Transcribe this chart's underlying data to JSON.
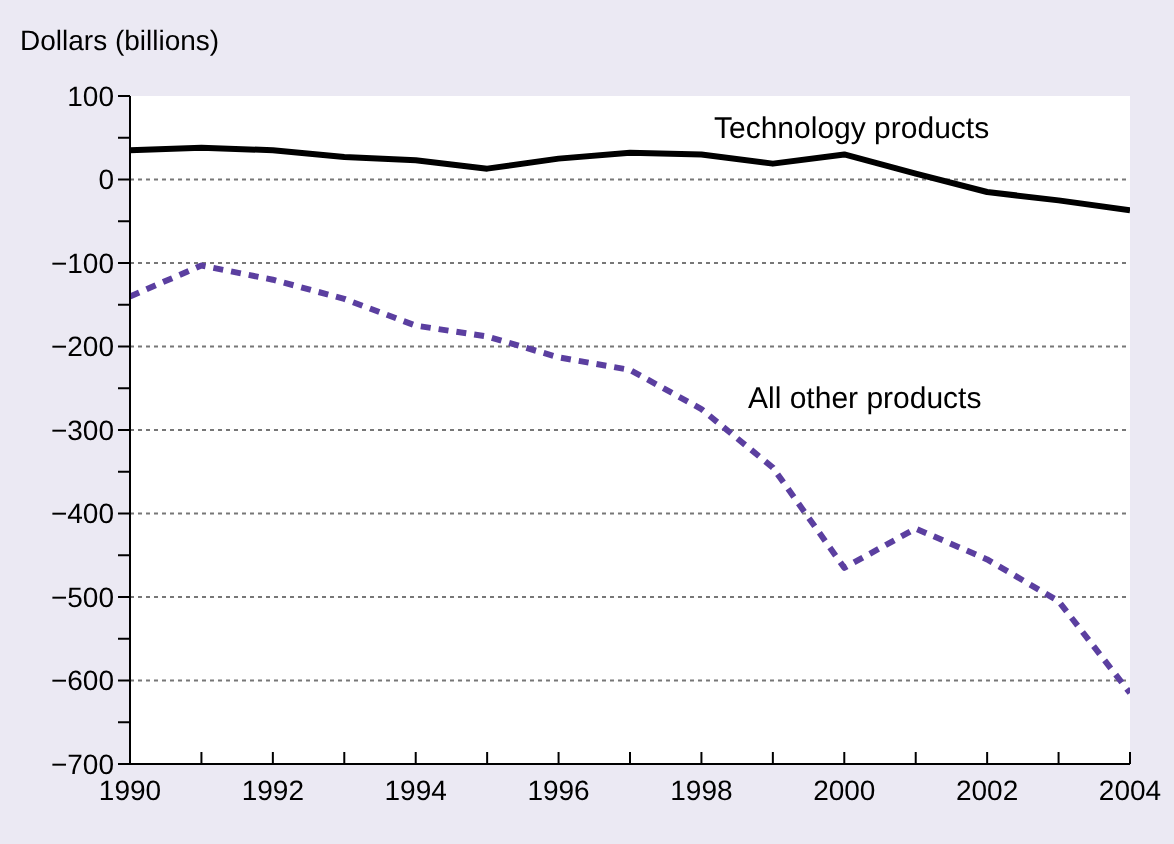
{
  "chart_data": {
    "type": "line",
    "ylabel": "Dollars (billions)",
    "x": [
      1990,
      1991,
      1992,
      1993,
      1994,
      1995,
      1996,
      1997,
      1998,
      1999,
      2000,
      2001,
      2002,
      2003,
      2004
    ],
    "series": [
      {
        "name": "Technology products",
        "color": "#000000",
        "line_style": "solid",
        "values": [
          35,
          38,
          35,
          27,
          23,
          13,
          25,
          32,
          30,
          19,
          30,
          7,
          -15,
          -25,
          -37
        ]
      },
      {
        "name": "All other products",
        "color": "#5b3fa0",
        "line_style": "dashed",
        "values": [
          -140,
          -103,
          -120,
          -143,
          -175,
          -188,
          -213,
          -228,
          -275,
          -345,
          -465,
          -418,
          -455,
          -505,
          -615
        ]
      }
    ],
    "xlim": [
      1990,
      2004
    ],
    "xticks": [
      1990,
      {
        "value": 1991,
        "label": null
      },
      1992,
      {
        "value": 1993,
        "label": null
      },
      1994,
      {
        "value": 1995,
        "label": null
      },
      1996,
      {
        "value": 1997,
        "label": null
      },
      1998,
      {
        "value": 1999,
        "label": null
      },
      2000,
      {
        "value": 2001,
        "label": null
      },
      2002,
      {
        "value": 2003,
        "label": null
      },
      2004
    ],
    "ylim": [
      -700,
      100
    ],
    "yticks": [
      {
        "value": -700,
        "label": "−700"
      },
      {
        "value": -650,
        "label": null
      },
      {
        "value": -600,
        "label": "−600"
      },
      {
        "value": -550,
        "label": null
      },
      {
        "value": -500,
        "label": "−500"
      },
      {
        "value": -450,
        "label": null
      },
      {
        "value": -400,
        "label": "−400"
      },
      {
        "value": -350,
        "label": null
      },
      {
        "value": -300,
        "label": "−300"
      },
      {
        "value": -250,
        "label": null
      },
      {
        "value": -200,
        "label": "−200"
      },
      {
        "value": -150,
        "label": null
      },
      {
        "value": -100,
        "label": "−100"
      },
      {
        "value": -50,
        "label": null
      },
      0,
      {
        "value": 50,
        "label": null
      },
      100
    ],
    "grid": "y",
    "marker": "none"
  }
}
